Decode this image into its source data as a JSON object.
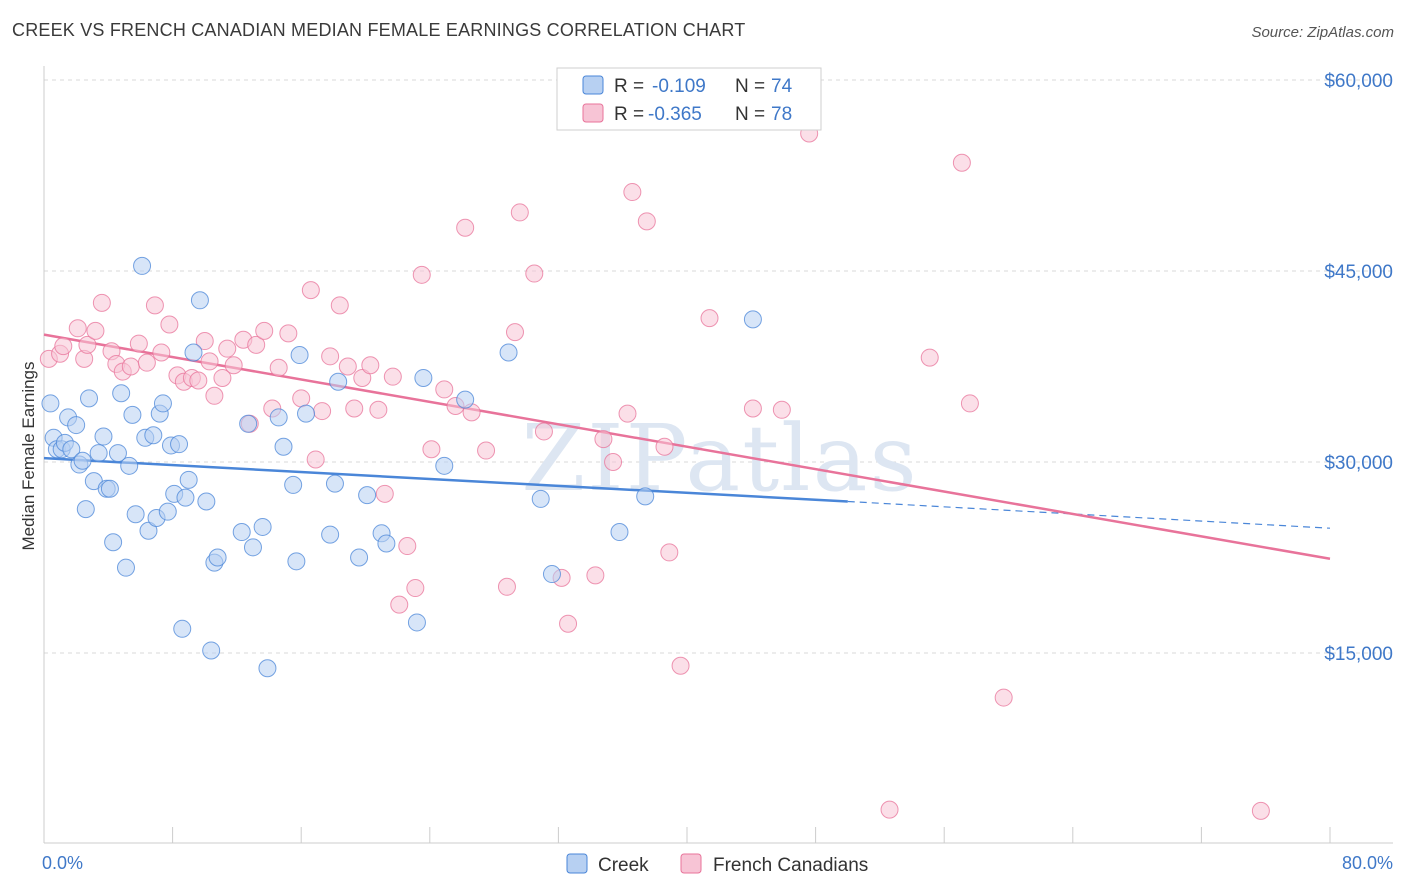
{
  "header": {
    "title": "CREEK VS FRENCH CANADIAN MEDIAN FEMALE EARNINGS CORRELATION CHART",
    "source": "Source: ZipAtlas.com"
  },
  "watermark": "ZIPatlas",
  "colors": {
    "creek": "#4a86d8",
    "creek_fill": "#b7d0f2",
    "french": "#e8739a",
    "french_fill": "#f7c4d5",
    "value_text": "#3f78c8",
    "grid": "#d9d9d9"
  },
  "legend": {
    "rows": [
      {
        "r_label": "R =",
        "r_value": "-0.109",
        "n_label": "N =",
        "n_value": "74"
      },
      {
        "r_label": "R =",
        "r_value": "-0.365",
        "n_label": "N =",
        "n_value": "78"
      }
    ]
  },
  "bottom_legend": [
    "Creek",
    "French Canadians"
  ],
  "chart_data": {
    "type": "scatter",
    "ylabel": "Median Female Earnings",
    "xlabel": "",
    "xlim": [
      0,
      80
    ],
    "ylim": [
      0,
      64000
    ],
    "x_tick_labels": [
      "0.0%",
      "80.0%"
    ],
    "y_ticks": [
      15000,
      30000,
      45000,
      60000
    ],
    "y_tick_labels": [
      "$15,000",
      "$30,000",
      "$45,000",
      "$60,000"
    ],
    "grid": true,
    "legend_position": "top-center",
    "series": [
      {
        "name": "Creek",
        "r": -0.109,
        "n": 74,
        "trend": {
          "x": [
            0,
            50,
            80
          ],
          "y": [
            30300,
            26900,
            24800
          ],
          "solid_until": 50
        },
        "points": [
          [
            0.4,
            34600
          ],
          [
            0.6,
            31900
          ],
          [
            0.8,
            31000
          ],
          [
            1.1,
            31000
          ],
          [
            1.3,
            31500
          ],
          [
            1.5,
            33500
          ],
          [
            1.7,
            31000
          ],
          [
            2.0,
            32900
          ],
          [
            2.2,
            29800
          ],
          [
            2.4,
            30100
          ],
          [
            2.6,
            26300
          ],
          [
            2.8,
            35000
          ],
          [
            3.1,
            28500
          ],
          [
            3.4,
            30700
          ],
          [
            3.7,
            32000
          ],
          [
            3.9,
            27900
          ],
          [
            4.1,
            27900
          ],
          [
            4.3,
            23700
          ],
          [
            4.6,
            30700
          ],
          [
            4.8,
            35400
          ],
          [
            5.1,
            21700
          ],
          [
            5.3,
            29700
          ],
          [
            5.5,
            33700
          ],
          [
            5.7,
            25900
          ],
          [
            6.1,
            45400
          ],
          [
            6.3,
            31900
          ],
          [
            6.5,
            24600
          ],
          [
            6.8,
            32100
          ],
          [
            7.0,
            25600
          ],
          [
            7.2,
            33800
          ],
          [
            7.4,
            34600
          ],
          [
            7.7,
            26100
          ],
          [
            7.9,
            31300
          ],
          [
            8.1,
            27500
          ],
          [
            8.4,
            31400
          ],
          [
            8.6,
            16900
          ],
          [
            8.8,
            27200
          ],
          [
            9.0,
            28600
          ],
          [
            9.3,
            38600
          ],
          [
            9.7,
            42700
          ],
          [
            10.1,
            26900
          ],
          [
            10.4,
            15200
          ],
          [
            10.6,
            22100
          ],
          [
            10.8,
            22500
          ],
          [
            12.3,
            24500
          ],
          [
            12.7,
            33000
          ],
          [
            13.0,
            23300
          ],
          [
            13.6,
            24900
          ],
          [
            14.6,
            33500
          ],
          [
            14.9,
            31200
          ],
          [
            15.5,
            28200
          ],
          [
            15.7,
            22200
          ],
          [
            15.9,
            38400
          ],
          [
            16.3,
            33800
          ],
          [
            17.8,
            24300
          ],
          [
            18.1,
            28300
          ],
          [
            18.3,
            36300
          ],
          [
            19.6,
            22500
          ],
          [
            20.1,
            27400
          ],
          [
            21.0,
            24400
          ],
          [
            21.3,
            23600
          ],
          [
            23.2,
            17400
          ],
          [
            23.6,
            36600
          ],
          [
            24.9,
            29700
          ],
          [
            26.2,
            34900
          ],
          [
            28.9,
            38600
          ],
          [
            30.9,
            27100
          ],
          [
            31.6,
            21200
          ],
          [
            13.9,
            13800
          ],
          [
            35.8,
            24500
          ],
          [
            37.4,
            27300
          ],
          [
            44.1,
            41200
          ]
        ]
      },
      {
        "name": "French Canadians",
        "r": -0.365,
        "n": 78,
        "trend": {
          "x": [
            0,
            80
          ],
          "y": [
            40000,
            22400
          ],
          "solid_until": 80
        },
        "points": [
          [
            0.3,
            38100
          ],
          [
            1.0,
            38500
          ],
          [
            1.2,
            39100
          ],
          [
            2.1,
            40500
          ],
          [
            2.5,
            38100
          ],
          [
            2.7,
            39200
          ],
          [
            3.2,
            40300
          ],
          [
            3.6,
            42500
          ],
          [
            4.2,
            38700
          ],
          [
            4.5,
            37700
          ],
          [
            4.9,
            37100
          ],
          [
            5.4,
            37500
          ],
          [
            5.9,
            39300
          ],
          [
            6.4,
            37800
          ],
          [
            6.9,
            42300
          ],
          [
            7.3,
            38600
          ],
          [
            7.8,
            40800
          ],
          [
            8.3,
            36800
          ],
          [
            8.7,
            36300
          ],
          [
            9.2,
            36600
          ],
          [
            9.6,
            36400
          ],
          [
            10.0,
            39500
          ],
          [
            10.3,
            37900
          ],
          [
            10.6,
            35200
          ],
          [
            11.1,
            36600
          ],
          [
            11.4,
            38900
          ],
          [
            11.8,
            37600
          ],
          [
            12.4,
            39600
          ],
          [
            12.8,
            33000
          ],
          [
            13.2,
            39200
          ],
          [
            13.7,
            40300
          ],
          [
            14.2,
            34200
          ],
          [
            14.6,
            37400
          ],
          [
            15.2,
            40100
          ],
          [
            16.0,
            35000
          ],
          [
            16.6,
            43500
          ],
          [
            16.9,
            30200
          ],
          [
            17.3,
            34000
          ],
          [
            17.8,
            38300
          ],
          [
            18.4,
            42300
          ],
          [
            18.9,
            37500
          ],
          [
            19.3,
            34200
          ],
          [
            19.8,
            36600
          ],
          [
            20.3,
            37600
          ],
          [
            20.8,
            34100
          ],
          [
            21.2,
            27500
          ],
          [
            21.7,
            36700
          ],
          [
            22.1,
            18800
          ],
          [
            22.6,
            23400
          ],
          [
            23.1,
            20100
          ],
          [
            23.5,
            44700
          ],
          [
            24.1,
            31000
          ],
          [
            24.9,
            35700
          ],
          [
            25.6,
            34400
          ],
          [
            26.2,
            48400
          ],
          [
            26.6,
            33900
          ],
          [
            27.5,
            30900
          ],
          [
            28.8,
            20200
          ],
          [
            29.3,
            40200
          ],
          [
            29.6,
            49600
          ],
          [
            30.5,
            44800
          ],
          [
            31.1,
            32400
          ],
          [
            32.2,
            20900
          ],
          [
            32.6,
            17300
          ],
          [
            34.3,
            21100
          ],
          [
            34.8,
            31800
          ],
          [
            35.4,
            30000
          ],
          [
            36.3,
            33800
          ],
          [
            36.6,
            51200
          ],
          [
            37.5,
            48900
          ],
          [
            38.6,
            31200
          ],
          [
            38.9,
            22900
          ],
          [
            39.6,
            14000
          ],
          [
            41.4,
            41300
          ],
          [
            44.1,
            34200
          ],
          [
            45.9,
            34100
          ],
          [
            47.6,
            55800
          ],
          [
            52.6,
            2700
          ],
          [
            55.1,
            38200
          ],
          [
            57.1,
            53500
          ],
          [
            57.6,
            34600
          ],
          [
            59.7,
            11500
          ],
          [
            75.7,
            2600
          ]
        ]
      }
    ]
  }
}
